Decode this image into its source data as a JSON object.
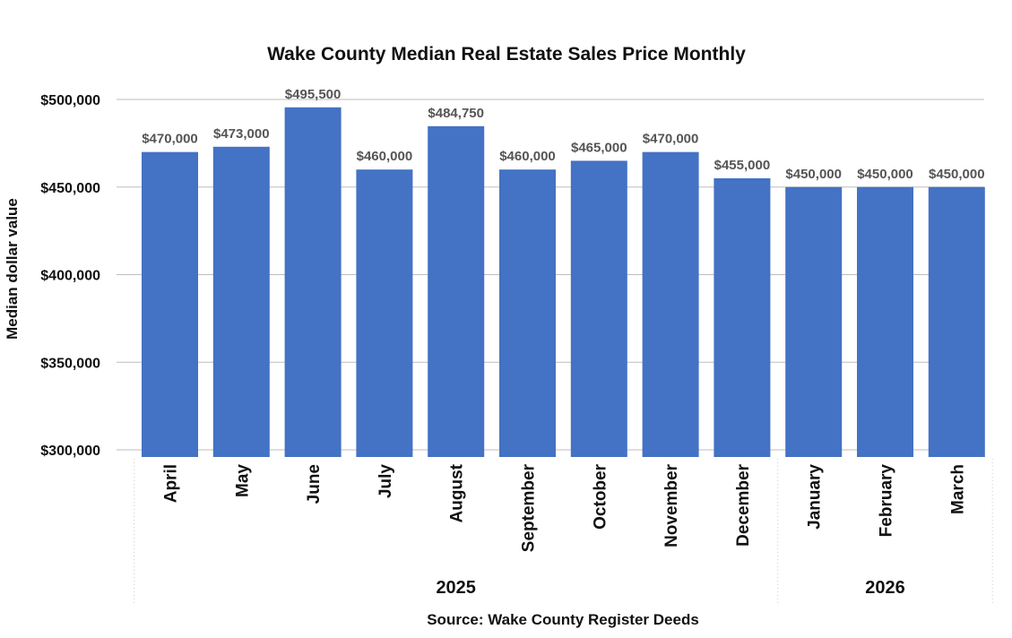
{
  "chart_data": {
    "type": "bar",
    "title": "Wake County Median Real Estate Sales Price Monthly",
    "ylabel": "Median dollar value",
    "source": "Source: Wake County Register Deeds",
    "categories": [
      "April",
      "May",
      "June",
      "July",
      "August",
      "September",
      "October",
      "November",
      "December",
      "January",
      "February",
      "March"
    ],
    "values": [
      470000,
      473000,
      495500,
      460000,
      484750,
      460000,
      465000,
      470000,
      455000,
      450000,
      450000,
      450000
    ],
    "data_labels": [
      "$470,000",
      "$473,000",
      "$495,500",
      "$460,000",
      "$484,750",
      "$460,000",
      "$465,000",
      "$470,000",
      "$455,000",
      "$450,000",
      "$450,000",
      "$450,000"
    ],
    "year_groups": [
      {
        "label": "2025",
        "start": 0,
        "end": 8
      },
      {
        "label": "2026",
        "start": 9,
        "end": 11
      }
    ],
    "ylim": [
      300000,
      500000
    ],
    "yticks": [
      300000,
      350000,
      400000,
      450000,
      500000
    ],
    "ytick_labels": [
      "$300,000",
      "$350,000",
      "$400,000",
      "$450,000",
      "$500,000"
    ],
    "bar_color": "#4472c4",
    "grid": true,
    "legend": "none"
  }
}
